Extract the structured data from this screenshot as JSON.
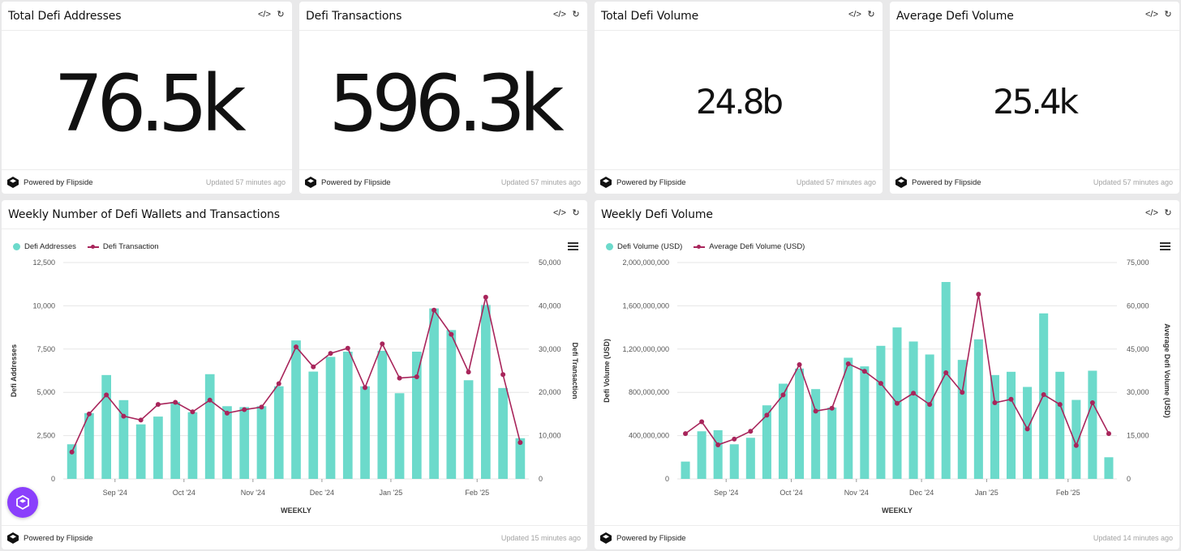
{
  "colors": {
    "bar": "#6cdacb",
    "line": "#a8255b",
    "grid": "#e6e6e6",
    "axis_text": "#555555",
    "fab": "#8a3ffc"
  },
  "footer": {
    "powered": "Powered by Flipside",
    "logo_icon": "flipside-logo-icon"
  },
  "kpis": [
    {
      "title": "Total Defi Addresses",
      "value": "76.5k",
      "updated": "Updated 57 minutes ago"
    },
    {
      "title": "Defi Transactions",
      "value": "596.3k",
      "updated": "Updated 57 minutes ago"
    },
    {
      "title": "Total Defi Volume",
      "value": "24.8b",
      "updated": "Updated 57 minutes ago"
    },
    {
      "title": "Average Defi Volume",
      "value": "25.4k",
      "updated": "Updated 57 minutes ago"
    }
  ],
  "charts_meta": [
    {
      "title": "Weekly Number of Defi Wallets and Transactions",
      "updated": "Updated 15 minutes ago"
    },
    {
      "title": "Weekly Defi Volume",
      "updated": "Updated 14 minutes ago"
    }
  ],
  "chart_data": [
    {
      "type": "bar",
      "title": "Weekly Number of Defi Wallets and Transactions",
      "xlabel": "WEEKLY",
      "ylabel": "Defi Addresses",
      "y2label": "Defi Transaction",
      "ylim": [
        0,
        12500
      ],
      "y2lim": [
        0,
        50000
      ],
      "yticks": [
        "0",
        "2,500",
        "5,000",
        "7,500",
        "10,000",
        "12,500"
      ],
      "y2ticks": [
        "0",
        "10,000",
        "20,000",
        "30,000",
        "40,000",
        "50,000"
      ],
      "xticks": [
        {
          "label": "Sep '24",
          "after_index": 2
        },
        {
          "label": "Oct '24",
          "after_index": 6
        },
        {
          "label": "Nov '24",
          "after_index": 10
        },
        {
          "label": "Dec '24",
          "after_index": 14
        },
        {
          "label": "Jan '25",
          "after_index": 18
        },
        {
          "label": "Feb '25",
          "after_index": 23
        }
      ],
      "legend_position": "top-left",
      "series": [
        {
          "name": "Defi Addresses",
          "kind": "bar",
          "axis": "left",
          "values": [
            2000,
            3800,
            6000,
            4550,
            3150,
            3600,
            4450,
            3850,
            6050,
            4200,
            4150,
            4200,
            5350,
            8000,
            6200,
            7050,
            7350,
            5350,
            7400,
            4950,
            7350,
            9850,
            8600,
            5700,
            10050,
            5250,
            2350
          ]
        },
        {
          "name": "Defi Transaction",
          "kind": "line",
          "axis": "right",
          "values": [
            6200,
            15000,
            19400,
            14500,
            13600,
            17200,
            17700,
            15500,
            18200,
            15200,
            16000,
            16600,
            22000,
            30500,
            25900,
            29000,
            30200,
            21100,
            31200,
            23300,
            23600,
            39000,
            33400,
            24700,
            42000,
            24100,
            8400
          ]
        }
      ]
    },
    {
      "type": "bar",
      "title": "Weekly Defi Volume",
      "xlabel": "WEEKLY",
      "ylabel": "Defi Volume (USD)",
      "y2label": "Average Defi Volume (USD)",
      "ylim": [
        0,
        2000000000
      ],
      "y2lim": [
        0,
        75000
      ],
      "yticks": [
        "0",
        "400,000,000",
        "800,000,000",
        "1,200,000,000",
        "1,600,000,000",
        "2,000,000,000"
      ],
      "y2ticks": [
        "0",
        "15,000",
        "30,000",
        "45,000",
        "60,000",
        "75,000"
      ],
      "xticks": [
        {
          "label": "Sep '24",
          "after_index": 2
        },
        {
          "label": "Oct '24",
          "after_index": 6
        },
        {
          "label": "Nov '24",
          "after_index": 10
        },
        {
          "label": "Dec '24",
          "after_index": 14
        },
        {
          "label": "Jan '25",
          "after_index": 18
        },
        {
          "label": "Feb '25",
          "after_index": 23
        }
      ],
      "legend_position": "top-left",
      "series": [
        {
          "name": "Defi Volume (USD)",
          "kind": "bar",
          "axis": "left",
          "values": [
            160000000,
            440000000,
            450000000,
            320000000,
            380000000,
            680000000,
            880000000,
            1020000000,
            830000000,
            660000000,
            1120000000,
            1040000000,
            1230000000,
            1400000000,
            1270000000,
            1150000000,
            1820000000,
            1100000000,
            1290000000,
            960000000,
            990000000,
            850000000,
            1530000000,
            990000000,
            730000000,
            1000000000,
            200000000
          ]
        },
        {
          "name": "Average Defi Volume (USD)",
          "kind": "line",
          "axis": "right",
          "values": [
            15700,
            19800,
            11800,
            13800,
            16500,
            22100,
            29100,
            39600,
            23500,
            24500,
            39900,
            37300,
            33100,
            26200,
            29700,
            25800,
            36800,
            30000,
            64000,
            26400,
            27600,
            17300,
            29200,
            25800,
            11600,
            26400,
            15700
          ]
        }
      ]
    }
  ]
}
